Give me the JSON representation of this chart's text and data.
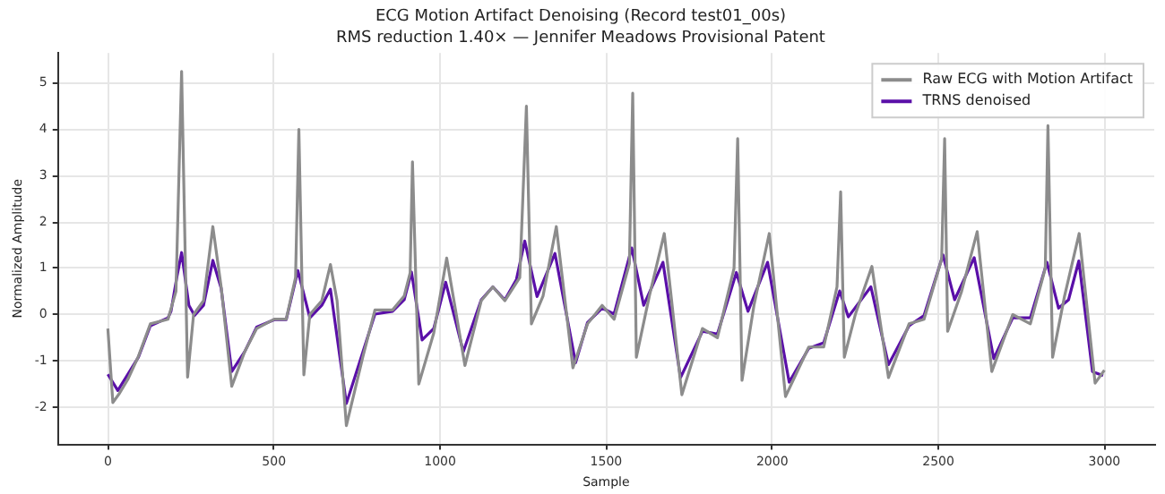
{
  "chart_data": {
    "type": "line",
    "title": "ECG Motion Artifact Denoising (Record test01_00s)",
    "subtitle": "RMS reduction 1.40× — Jennifer Meadows Provisional Patent",
    "xlabel": "Sample",
    "ylabel": "Normalized Amplitude",
    "xlim": [
      -150,
      3150
    ],
    "ylim": [
      -2.8,
      5.65
    ],
    "xticks": [
      0,
      500,
      1000,
      1500,
      2000,
      2500,
      3000
    ],
    "yticks": [
      -2,
      -1,
      0,
      1,
      2,
      3,
      4,
      5
    ],
    "grid": true,
    "legend": "top right",
    "marker": "none",
    "line_style": "solid",
    "series": [
      {
        "name": "Raw ECG with Motion Artifact",
        "color": "#8c8c8c",
        "x": [
          0,
          15,
          35,
          60,
          92,
          128,
          181,
          205,
          222,
          240,
          258,
          288,
          316,
          341,
          373,
          412,
          448,
          501,
          537,
          565,
          575,
          590,
          608,
          644,
          670,
          690,
          718,
          768,
          804,
          857,
          892,
          910,
          917,
          936,
          981,
          1020,
          1075,
          1124,
          1159,
          1195,
          1240,
          1260,
          1275,
          1310,
          1350,
          1400,
          1444,
          1488,
          1524,
          1570,
          1580,
          1591,
          1630,
          1675,
          1728,
          1790,
          1835,
          1885,
          1896,
          1909,
          1945,
          1991,
          2040,
          2110,
          2155,
          2195,
          2206,
          2217,
          2250,
          2300,
          2350,
          2412,
          2457,
          2510,
          2519,
          2528,
          2570,
          2617,
          2661,
          2724,
          2777,
          2822,
          2830,
          2844,
          2880,
          2924,
          2972,
          3000
        ],
        "values": [
          -0.3,
          -1.9,
          -1.7,
          -1.4,
          -0.9,
          -0.2,
          -0.1,
          0.5,
          5.25,
          -1.35,
          0,
          0.3,
          1.9,
          0.6,
          -1.55,
          -0.8,
          -0.3,
          -0.1,
          -0.1,
          0.8,
          4.0,
          -1.3,
          0,
          0.3,
          1.08,
          0.3,
          -2.4,
          -0.9,
          0.1,
          0.1,
          0.4,
          0.9,
          3.3,
          -1.5,
          -0.4,
          1.22,
          -1.1,
          0.3,
          0.6,
          0.3,
          0.8,
          4.5,
          -0.2,
          0.4,
          1.9,
          -1.15,
          -0.2,
          0.2,
          -0.1,
          1.1,
          4.78,
          -0.92,
          0.4,
          1.75,
          -1.73,
          -0.3,
          -0.5,
          1,
          3.8,
          -1.42,
          0.2,
          1.75,
          -1.77,
          -0.7,
          -0.7,
          0.6,
          2.65,
          -0.92,
          0,
          1.04,
          -1.36,
          -0.2,
          -0.1,
          1.2,
          3.8,
          -0.36,
          0.5,
          1.79,
          -1.23,
          0,
          -0.2,
          1.0,
          4.08,
          -0.92,
          0.4,
          1.75,
          -1.48,
          -1.2
        ]
      },
      {
        "name": "TRNS denoised",
        "color": "#5a0fa8",
        "x": [
          0,
          30,
          92,
          128,
          181,
          190,
          208,
          222,
          244,
          261,
          288,
          316,
          341,
          373,
          412,
          448,
          501,
          537,
          572,
          608,
          644,
          670,
          718,
          768,
          804,
          857,
          892,
          914,
          946,
          981,
          1017,
          1070,
          1124,
          1159,
          1195,
          1230,
          1255,
          1292,
          1346,
          1408,
          1444,
          1488,
          1524,
          1577,
          1613,
          1671,
          1724,
          1790,
          1835,
          1892,
          1927,
          1986,
          2051,
          2110,
          2155,
          2203,
          2229,
          2297,
          2350,
          2412,
          2457,
          2514,
          2549,
          2608,
          2667,
          2724,
          2777,
          2827,
          2862,
          2892,
          2923,
          2964,
          2996
        ],
        "values": [
          -1.29,
          -1.64,
          -0.92,
          -0.24,
          -0.07,
          0.07,
          0.82,
          1.34,
          0.2,
          -0.02,
          0.2,
          1.17,
          0.57,
          -1.23,
          -0.8,
          -0.27,
          -0.11,
          -0.11,
          0.95,
          -0.07,
          0.2,
          0.55,
          -1.92,
          -0.8,
          0.01,
          0.07,
          0.32,
          0.92,
          -0.55,
          -0.3,
          0.7,
          -0.8,
          0.32,
          0.6,
          0.32,
          0.76,
          1.59,
          0.39,
          1.32,
          -1.04,
          -0.17,
          0.14,
          0.01,
          1.44,
          0.2,
          1.13,
          -1.36,
          -0.36,
          -0.42,
          0.91,
          0.07,
          1.13,
          -1.46,
          -0.73,
          -0.61,
          0.51,
          -0.05,
          0.6,
          -1.08,
          -0.24,
          -0.02,
          1.29,
          0.32,
          1.23,
          -0.95,
          -0.07,
          -0.07,
          1.13,
          0.14,
          0.32,
          1.16,
          -1.23,
          -1.32
        ]
      }
    ]
  }
}
